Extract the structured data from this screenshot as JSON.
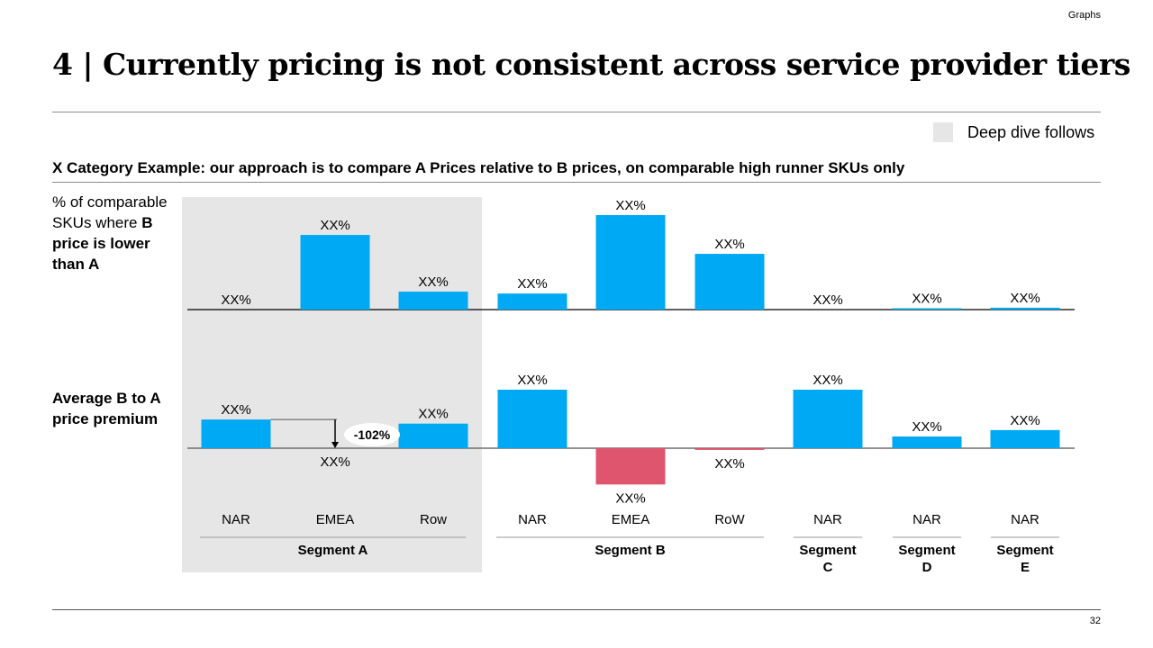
{
  "header": {
    "section_tag": "Graphs",
    "title": "4 | Currently pricing is not consistent across service provider tiers",
    "legend": {
      "label": "Deep dive follows",
      "swatch_color": "#e6e6e6"
    },
    "subtitle": "X Category Example: our approach is to compare A Prices relative to B prices, on comparable high runner SKUs only"
  },
  "row_labels": {
    "top": {
      "normal": "% of comparable SKUs where ",
      "bold": "B price is lower than A"
    },
    "bottom": {
      "bold": "Average B to A price premium"
    }
  },
  "footer": {
    "page_number": "32"
  },
  "colors": {
    "positive": "#00a9f4",
    "negative": "#e0556e",
    "highlight_bg": "#e6e6e6"
  },
  "chart_data": [
    {
      "type": "bar",
      "title": "% of comparable SKUs where B price is lower than A",
      "categories": [
        "NAR",
        "EMEA",
        "Row",
        "NAR",
        "EMEA",
        "RoW",
        "NAR",
        "NAR",
        "NAR"
      ],
      "groups": [
        {
          "name": "Segment A",
          "categories": [
            "NAR",
            "EMEA",
            "Row"
          ],
          "highlighted": true
        },
        {
          "name": "Segment B",
          "categories": [
            "NAR",
            "EMEA",
            "RoW"
          ],
          "highlighted": false
        },
        {
          "name": "Segment C",
          "categories": [
            "NAR"
          ],
          "highlighted": false
        },
        {
          "name": "Segment D",
          "categories": [
            "NAR"
          ],
          "highlighted": false
        },
        {
          "name": "Segment E",
          "categories": [
            "NAR"
          ],
          "highlighted": false
        }
      ],
      "values": [
        0,
        79,
        19,
        17,
        100,
        59,
        0,
        1,
        2
      ],
      "data_labels": [
        "XX%",
        "XX%",
        "XX%",
        "XX%",
        "XX%",
        "XX%",
        "XX%",
        "XX%",
        "XX%"
      ],
      "ylim": [
        0,
        100
      ],
      "grid": false
    },
    {
      "type": "bar",
      "title": "Average B to A price premium",
      "categories": [
        "NAR",
        "EMEA",
        "Row",
        "NAR",
        "EMEA",
        "RoW",
        "NAR",
        "NAR",
        "NAR"
      ],
      "values": [
        49,
        0,
        42,
        100,
        -62,
        -3,
        100,
        20,
        31
      ],
      "data_labels": [
        "XX%",
        "XX%",
        "XX%",
        "XX%",
        "XX%",
        "XX%",
        "XX%",
        "XX%",
        "XX%"
      ],
      "ylim": [
        -62,
        100
      ],
      "annotation": {
        "text": "-102%",
        "from_category_index": 0,
        "to_category_index": 1
      },
      "grid": false
    }
  ]
}
